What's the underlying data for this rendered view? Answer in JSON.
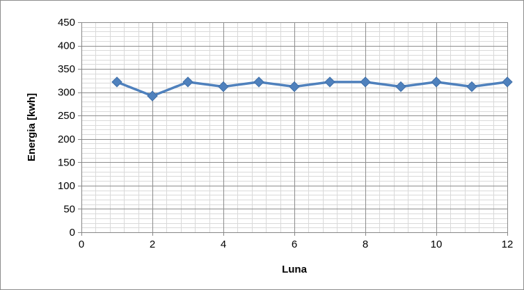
{
  "chart_data": {
    "type": "line",
    "title": "",
    "xlabel": "Luna",
    "ylabel": "Energia [kwh]",
    "x": [
      1,
      2,
      3,
      4,
      5,
      6,
      7,
      8,
      9,
      10,
      11,
      12
    ],
    "series": [
      {
        "values": [
          322,
          292,
          322,
          312,
          322,
          312,
          322,
          322,
          312,
          322,
          312,
          322
        ]
      }
    ],
    "xlim": [
      0,
      12
    ],
    "ylim": [
      0,
      450
    ],
    "x_ticks": [
      "0",
      "2",
      "4",
      "6",
      "8",
      "10",
      "12"
    ],
    "y_ticks": [
      "0",
      "50",
      "100",
      "150",
      "200",
      "250",
      "300",
      "350",
      "400",
      "450"
    ],
    "grid": true,
    "legend": "none",
    "marker": "diamond",
    "line_color": "#4f81bd"
  }
}
